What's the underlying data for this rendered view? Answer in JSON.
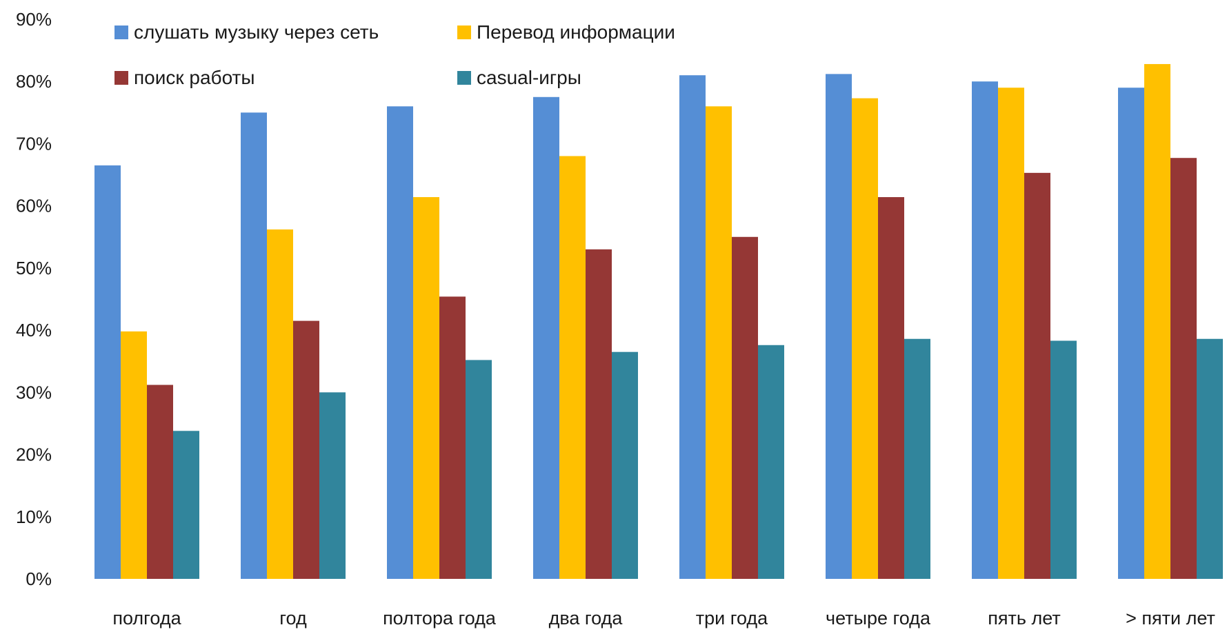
{
  "chart_data": {
    "type": "bar",
    "categories": [
      "полгода",
      "год",
      "полтора года",
      "два года",
      "три года",
      "четыре года",
      "пять лет",
      "> пяти лет"
    ],
    "series": [
      {
        "name": "слушать музыку через сеть",
        "color": "#558ED5",
        "values": [
          66.5,
          75,
          76,
          77.5,
          81,
          81.2,
          80,
          79
        ]
      },
      {
        "name": "Перевод информации",
        "color": "#FFC000",
        "values": [
          39.8,
          56.2,
          61.4,
          68,
          76,
          77.3,
          79,
          82.8
        ]
      },
      {
        "name": "поиск работы",
        "color": "#953735",
        "values": [
          31.2,
          41.5,
          45.4,
          53,
          55,
          61.4,
          65.3,
          67.7
        ]
      },
      {
        "name": "casual-игры",
        "color": "#31859C",
        "values": [
          23.8,
          30,
          35.2,
          36.5,
          37.6,
          38.6,
          38.3,
          38.6
        ]
      }
    ],
    "y_ticks": [
      "0%",
      "10%",
      "20%",
      "30%",
      "40%",
      "50%",
      "60%",
      "70%",
      "80%",
      "90%"
    ],
    "ylim": [
      0,
      90
    ],
    "grid": false,
    "legend_position": "top-left"
  }
}
